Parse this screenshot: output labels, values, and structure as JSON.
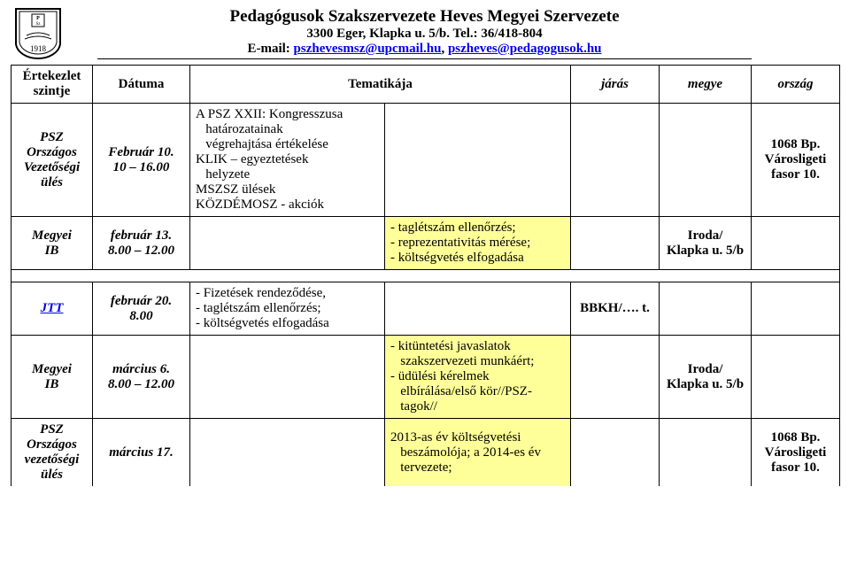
{
  "header": {
    "org_name": "Pedagógusok Szakszervezete Heves Megyei Szervezete",
    "address": "3300 Eger, Klapka u. 5/b. Tel.: 36/418-804",
    "email_prefix": "E-mail: ",
    "email1": "pszhevesmsz@upcmail.hu",
    "email_sep": ", ",
    "email2": "pszheves@pedagogusok.hu",
    "logo_year": "1918"
  },
  "columns": {
    "level": "Értekezlet\nszintje",
    "date": "Dátuma",
    "topic": "Tematikája",
    "jaras": "járás",
    "megye": "megye",
    "orszag": "ország"
  },
  "rows": [
    {
      "level": "PSZ\nOrszágos\nVezetőségi\nülés",
      "level_style": "italicb",
      "date": "Február 10.\n10 – 16.00",
      "date_style": "italicb",
      "topic1": "A PSZ XXII: Kongresszusa\n   határozatainak\n   végrehajtása értékelése\nKLIK – egyeztetések\n   helyzete\nMSZSZ ülések\nKÖZDÉMOSZ - akciók",
      "topic2": "",
      "jaras": "",
      "megye": "",
      "orszag": "1068 Bp.\nVárosligeti\nfasor 10.",
      "orszag_style": "bold"
    },
    {
      "level": "Megyei\nIB",
      "level_style": "italicb",
      "date": "február 13.\n8.00 – 12.00",
      "date_style": "italicb",
      "topic1": "",
      "topic2_items": [
        "taglétszám ellenőrzés;",
        "reprezentativitás mérése;",
        "költségvetés elfogadása"
      ],
      "topic2_yellow": true,
      "jaras": "",
      "megye": "Iroda/\nKlapka u. 5/b",
      "megye_style": "bold",
      "orszag": ""
    },
    {
      "spacer": true
    },
    {
      "level": "JTT",
      "level_style": "italicb link",
      "date": "február 20.\n8.00",
      "date_style": "italicb",
      "topic1_items": [
        "Fizetések rendeződése,",
        "taglétszám ellenőrzés;",
        "költségvetés elfogadása"
      ],
      "topic2": "",
      "jaras": "BBKH/…. t.",
      "jaras_style": "bold",
      "megye": "",
      "orszag": ""
    },
    {
      "level": "Megyei\nIB",
      "level_style": "italicb",
      "date": "március 6.\n8.00 – 12.00",
      "date_style": "italicb",
      "topic1": "",
      "topic2_html": "- kitüntetési javaslatok\n   szakszervezeti munkáért;\n- üdülési kérelmek\n   elbírálása/első kör//PSZ-\n   tagok//",
      "topic2_yellow": true,
      "jaras": "",
      "megye": "Iroda/\nKlapka u. 5/b",
      "megye_style": "bold",
      "orszag": ""
    },
    {
      "level": "PSZ\nOrszágos\nvezetőségi\nülés",
      "level_style": "italicb",
      "date": "március 17.",
      "date_style": "italicb",
      "topic1": "",
      "topic2_html": "2013-as év költségvetési\n   beszámolója; a 2014-es év\n   tervezete;",
      "topic2_yellow": true,
      "jaras": "",
      "megye": "",
      "orszag": "1068 Bp.\nVárosligeti\nfasor 10.",
      "orszag_style": "bold",
      "cut": true
    }
  ],
  "colors": {
    "yellow": "#ffff99",
    "link": "#0000ee",
    "border": "#000000",
    "bg": "#ffffff"
  }
}
